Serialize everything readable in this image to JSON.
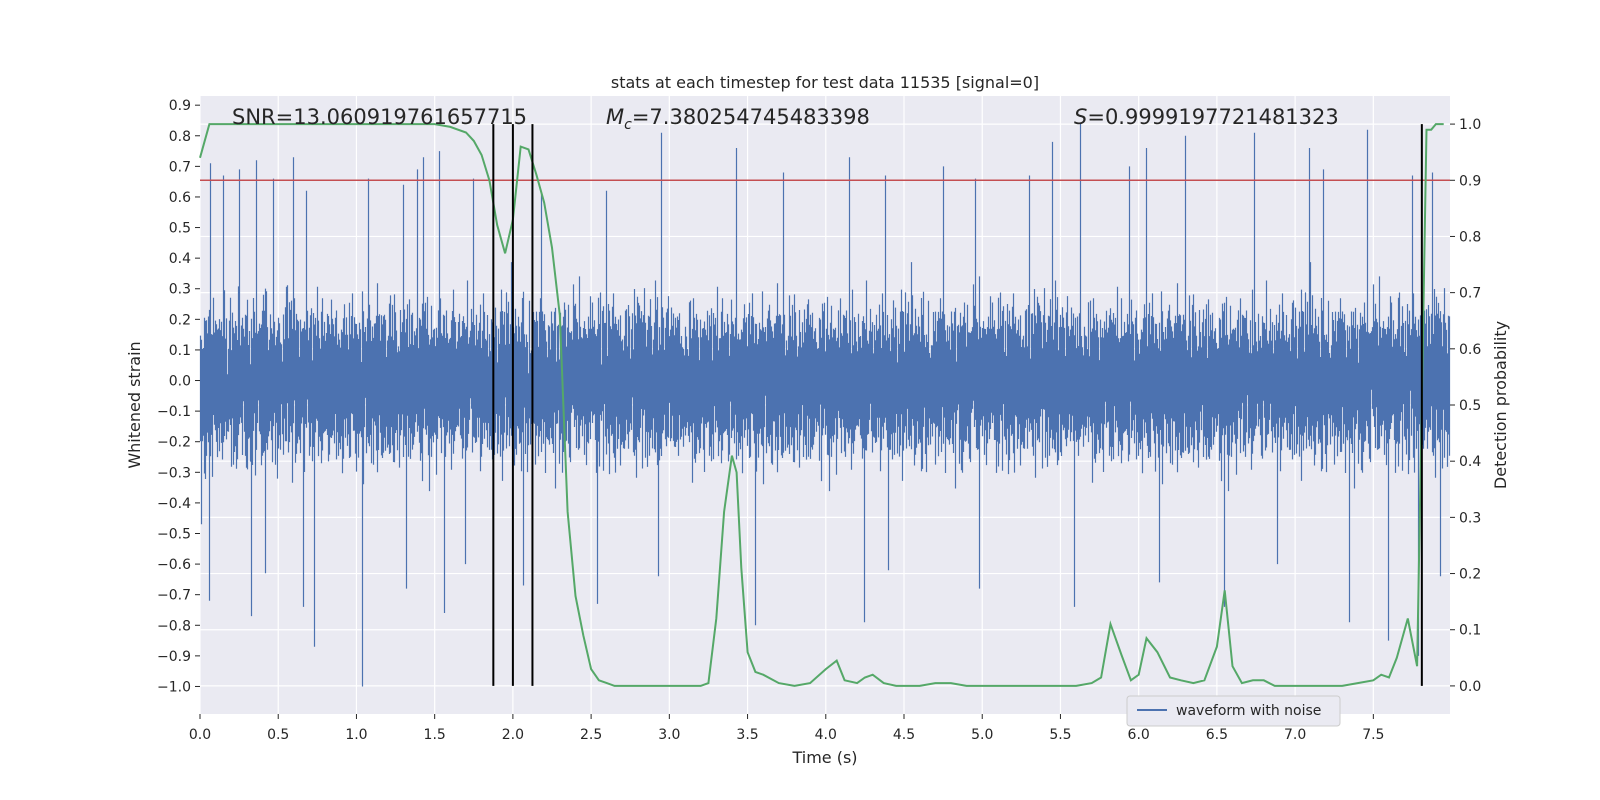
{
  "chart_data": {
    "type": "line",
    "title": "stats at each timestep for test data 11535 [signal=0]",
    "xlabel": "Time (s)",
    "ylabel": "Whitened strain",
    "y2label": "Detection probability",
    "xlim": [
      0.0,
      7.99
    ],
    "ylim": [
      -1.09,
      0.93
    ],
    "y2lim": [
      -0.05,
      1.05
    ],
    "xticks": [
      0.0,
      0.5,
      1.0,
      1.5,
      2.0,
      2.5,
      3.0,
      3.5,
      4.0,
      4.5,
      5.0,
      5.5,
      6.0,
      6.5,
      7.0,
      7.5
    ],
    "yticks": [
      -1.0,
      -0.9,
      -0.8,
      -0.7,
      -0.6,
      -0.5,
      -0.4,
      -0.3,
      -0.2,
      -0.1,
      0.0,
      0.1,
      0.2,
      0.3,
      0.4,
      0.5,
      0.6,
      0.7,
      0.8,
      0.9
    ],
    "y2ticks": [
      0.0,
      0.1,
      0.2,
      0.3,
      0.4,
      0.5,
      0.6,
      0.7,
      0.8,
      0.9,
      1.0
    ],
    "grid": true,
    "legend": {
      "placement": "lower-right",
      "entries": [
        "waveform with noise"
      ]
    },
    "annotations": {
      "snr": "SNR=13.060919761657715",
      "mc": "=7.380254745483398",
      "mc_symbol": "M",
      "mc_sub": "c",
      "s": "=0.9999197721481323",
      "s_symbol": "S"
    },
    "threshold": {
      "y2": 0.9,
      "color": "#c44e52"
    },
    "vlines": [
      1.875,
      2.0,
      2.125,
      7.81
    ],
    "waveform": {
      "name": "waveform with noise",
      "color": "#4c72b0",
      "sample_rate": 2048,
      "duration": 7.99,
      "peaks": [
        [
          0.07,
          0.71
        ],
        [
          0.15,
          0.67
        ],
        [
          0.25,
          0.69
        ],
        [
          0.36,
          0.72
        ],
        [
          0.47,
          0.66
        ],
        [
          0.6,
          0.73
        ],
        [
          0.68,
          0.62
        ],
        [
          1.08,
          0.66
        ],
        [
          1.3,
          0.64
        ],
        [
          1.39,
          0.69
        ],
        [
          1.43,
          0.73
        ],
        [
          1.53,
          0.75
        ],
        [
          1.75,
          0.66
        ],
        [
          2.18,
          0.61
        ],
        [
          2.6,
          0.62
        ],
        [
          2.95,
          0.81
        ],
        [
          3.43,
          0.76
        ],
        [
          3.73,
          0.68
        ],
        [
          4.15,
          0.73
        ],
        [
          4.38,
          0.67
        ],
        [
          4.75,
          0.7
        ],
        [
          4.96,
          0.66
        ],
        [
          5.3,
          0.67
        ],
        [
          5.45,
          0.78
        ],
        [
          5.63,
          0.84
        ],
        [
          5.94,
          0.7
        ],
        [
          6.05,
          0.76
        ],
        [
          6.3,
          0.8
        ],
        [
          6.74,
          0.81
        ],
        [
          7.09,
          0.76
        ],
        [
          7.18,
          0.69
        ],
        [
          7.46,
          0.82
        ],
        [
          7.75,
          0.67
        ],
        [
          7.88,
          0.68
        ]
      ],
      "troughs": [
        [
          0.01,
          -0.47
        ],
        [
          0.06,
          -0.72
        ],
        [
          0.33,
          -0.77
        ],
        [
          0.42,
          -0.63
        ],
        [
          0.66,
          -0.74
        ],
        [
          0.73,
          -0.87
        ],
        [
          1.04,
          -1.0
        ],
        [
          1.32,
          -0.68
        ],
        [
          1.56,
          -0.76
        ],
        [
          1.7,
          -0.6
        ],
        [
          2.07,
          -0.67
        ],
        [
          2.54,
          -0.73
        ],
        [
          2.93,
          -0.64
        ],
        [
          3.55,
          -0.8
        ],
        [
          4.25,
          -0.79
        ],
        [
          4.4,
          -0.62
        ],
        [
          4.98,
          -0.68
        ],
        [
          5.59,
          -0.74
        ],
        [
          6.13,
          -0.66
        ],
        [
          6.55,
          -0.74
        ],
        [
          6.89,
          -0.6
        ],
        [
          7.35,
          -0.79
        ],
        [
          7.6,
          -0.85
        ],
        [
          7.79,
          -0.9
        ],
        [
          7.93,
          -0.64
        ]
      ]
    },
    "probability": {
      "color": "#55a868",
      "x": [
        0.0,
        0.06,
        0.5,
        1.0,
        1.5,
        1.6,
        1.7,
        1.75,
        1.8,
        1.85,
        1.9,
        1.95,
        2.0,
        2.05,
        2.1,
        2.15,
        2.2,
        2.25,
        2.3,
        2.35,
        2.4,
        2.45,
        2.5,
        2.55,
        2.6,
        2.65,
        2.75,
        2.9,
        3.0,
        3.1,
        3.2,
        3.25,
        3.3,
        3.35,
        3.4,
        3.43,
        3.46,
        3.5,
        3.55,
        3.6,
        3.7,
        3.8,
        3.9,
        4.0,
        4.07,
        4.12,
        4.2,
        4.25,
        4.3,
        4.37,
        4.45,
        4.5,
        4.6,
        4.7,
        4.8,
        4.9,
        5.0,
        5.1,
        5.2,
        5.3,
        5.4,
        5.5,
        5.6,
        5.7,
        5.76,
        5.82,
        5.89,
        5.95,
        6.0,
        6.05,
        6.12,
        6.2,
        6.27,
        6.35,
        6.42,
        6.5,
        6.55,
        6.6,
        6.66,
        6.73,
        6.8,
        6.87,
        6.95,
        7.0,
        7.1,
        7.2,
        7.3,
        7.4,
        7.5,
        7.55,
        7.6,
        7.65,
        7.72,
        7.78,
        7.81,
        7.84,
        7.87,
        7.9,
        7.95
      ],
      "y": [
        0.94,
        1.0,
        1.0,
        1.0,
        1.0,
        0.995,
        0.985,
        0.97,
        0.945,
        0.9,
        0.82,
        0.77,
        0.83,
        0.96,
        0.955,
        0.91,
        0.86,
        0.78,
        0.66,
        0.31,
        0.16,
        0.09,
        0.03,
        0.01,
        0.005,
        0.0,
        0.0,
        0.0,
        0.0,
        0.0,
        0.0,
        0.005,
        0.12,
        0.31,
        0.41,
        0.38,
        0.21,
        0.06,
        0.025,
        0.02,
        0.005,
        0.0,
        0.005,
        0.03,
        0.045,
        0.01,
        0.005,
        0.015,
        0.02,
        0.005,
        0.0,
        0.0,
        0.0,
        0.005,
        0.005,
        0.0,
        0.0,
        0.0,
        0.0,
        0.0,
        0.0,
        0.0,
        0.0,
        0.005,
        0.015,
        0.11,
        0.055,
        0.01,
        0.02,
        0.085,
        0.06,
        0.015,
        0.01,
        0.005,
        0.01,
        0.07,
        0.17,
        0.035,
        0.005,
        0.01,
        0.01,
        0.0,
        0.0,
        0.0,
        0.0,
        0.0,
        0.0,
        0.005,
        0.01,
        0.02,
        0.015,
        0.05,
        0.12,
        0.035,
        0.5,
        0.99,
        0.99,
        1.0,
        1.0
      ]
    }
  }
}
